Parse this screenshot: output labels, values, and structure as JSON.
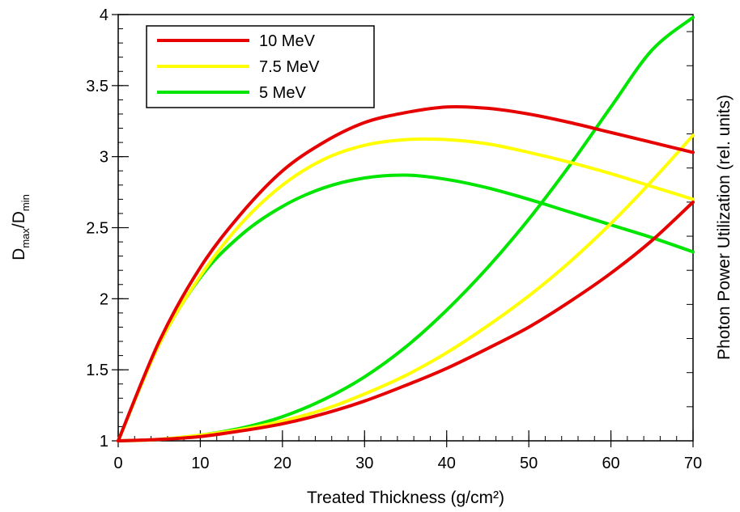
{
  "chart_data": {
    "type": "line",
    "xlabel": "Treated Thickness (g/cm²)",
    "ylabel": {
      "main": "D",
      "sub1": "max",
      "slash": "/D",
      "sub2": "min"
    },
    "y2label": "Photon Power Utilization (rel. units)",
    "xlim": [
      0,
      70
    ],
    "ylim": [
      1,
      4
    ],
    "x_ticks": [
      "0",
      "10",
      "20",
      "30",
      "40",
      "50",
      "60",
      "70"
    ],
    "y_ticks": [
      "1",
      "1.5",
      "2",
      "2.5",
      "3",
      "3.5",
      "4"
    ],
    "grid": false,
    "legend_position": "top-left",
    "series": [
      {
        "name": "10 MeV",
        "color": "#e60000",
        "ratio_curve": {
          "x": [
            0,
            5,
            10,
            15,
            20,
            25,
            30,
            35,
            40,
            45,
            50,
            55,
            60,
            65,
            70
          ],
          "y": [
            1.0,
            1.7,
            2.22,
            2.6,
            2.9,
            3.1,
            3.24,
            3.31,
            3.35,
            3.34,
            3.3,
            3.24,
            3.17,
            3.1,
            3.03
          ]
        },
        "utilization_curve": {
          "x": [
            0,
            5,
            10,
            15,
            20,
            25,
            30,
            35,
            40,
            45,
            50,
            55,
            60,
            65,
            70
          ],
          "y": [
            1.0,
            1.01,
            1.03,
            1.07,
            1.12,
            1.19,
            1.28,
            1.39,
            1.51,
            1.65,
            1.8,
            1.98,
            2.18,
            2.41,
            2.68
          ]
        }
      },
      {
        "name": "7.5 MeV",
        "color": "#ffff00",
        "ratio_curve": {
          "x": [
            0,
            5,
            10,
            15,
            20,
            25,
            30,
            35,
            40,
            45,
            50,
            55,
            60,
            65,
            70
          ],
          "y": [
            1.0,
            1.68,
            2.16,
            2.53,
            2.8,
            2.98,
            3.08,
            3.12,
            3.12,
            3.09,
            3.03,
            2.96,
            2.88,
            2.79,
            2.7
          ]
        },
        "utilization_curve": {
          "x": [
            0,
            5,
            10,
            15,
            20,
            25,
            30,
            35,
            40,
            45,
            50,
            55,
            60,
            65,
            70
          ],
          "y": [
            1.0,
            1.01,
            1.04,
            1.08,
            1.14,
            1.22,
            1.33,
            1.46,
            1.62,
            1.81,
            2.02,
            2.26,
            2.53,
            2.83,
            3.15
          ]
        }
      },
      {
        "name": "5 MeV",
        "color": "#00e600",
        "ratio_curve": {
          "x": [
            0,
            5,
            10,
            15,
            20,
            25,
            30,
            35,
            40,
            45,
            50,
            55,
            60,
            65,
            70
          ],
          "y": [
            1.0,
            1.68,
            2.15,
            2.45,
            2.65,
            2.78,
            2.85,
            2.87,
            2.84,
            2.78,
            2.7,
            2.61,
            2.52,
            2.43,
            2.33
          ]
        },
        "utilization_curve": {
          "x": [
            0,
            5,
            10,
            15,
            20,
            25,
            30,
            35,
            40,
            45,
            50,
            55,
            60,
            65,
            70
          ],
          "y": [
            1.0,
            1.01,
            1.04,
            1.09,
            1.17,
            1.29,
            1.45,
            1.66,
            1.92,
            2.22,
            2.56,
            2.94,
            3.35,
            3.75,
            3.98
          ]
        }
      }
    ]
  }
}
